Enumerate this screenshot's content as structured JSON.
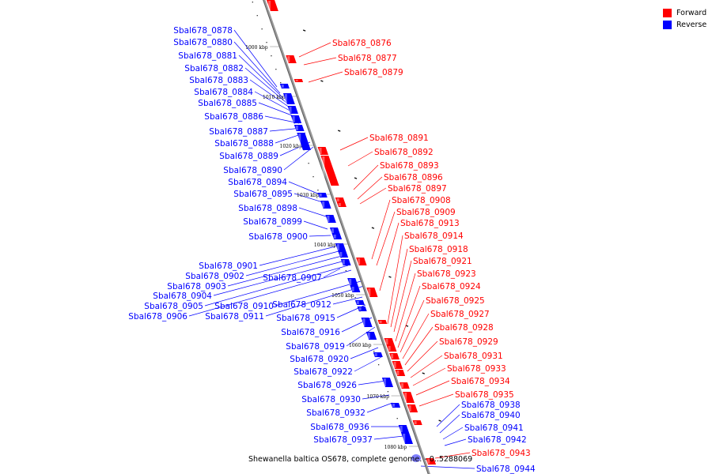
{
  "legend": {
    "forward": {
      "label": "Forward",
      "color": "#ff0000"
    },
    "reverse": {
      "label": "Reverse",
      "color": "#0000ff"
    }
  },
  "caption": "Shewanella baltica OS678, complete genome. - 0..5288069",
  "ticks": [
    "1000 kbp",
    "1010 kbp",
    "1020 kbp",
    "1030 kbp",
    "1040 kbp",
    "1050 kbp",
    "1060 kbp",
    "1070 kbp",
    "1080 kbp"
  ],
  "genes": {
    "forward": [
      "Sbal678_0876",
      "Sbal678_0877",
      "Sbal678_0879",
      "Sbal678_0891",
      "Sbal678_0892",
      "Sbal678_0893",
      "Sbal678_0896",
      "Sbal678_0897",
      "Sbal678_0908",
      "Sbal678_0909",
      "Sbal678_0913",
      "Sbal678_0914",
      "Sbal678_0918",
      "Sbal678_0921",
      "Sbal678_0923",
      "Sbal678_0924",
      "Sbal678_0925",
      "Sbal678_0927",
      "Sbal678_0928",
      "Sbal678_0929",
      "Sbal678_0931",
      "Sbal678_0933",
      "Sbal678_0934",
      "Sbal678_0935",
      "Sbal678_0943"
    ],
    "reverse": [
      "Sbal678_0878",
      "Sbal678_0880",
      "Sbal678_0881",
      "Sbal678_0882",
      "Sbal678_0883",
      "Sbal678_0884",
      "Sbal678_0885",
      "Sbal678_0886",
      "Sbal678_0887",
      "Sbal678_0888",
      "Sbal678_0889",
      "Sbal678_0890",
      "Sbal678_0894",
      "Sbal678_0895",
      "Sbal678_0898",
      "Sbal678_0899",
      "Sbal678_0900",
      "Sbal678_0901",
      "Sbal678_0902",
      "Sbal678_0903",
      "Sbal678_0904",
      "Sbal678_0905",
      "Sbal678_0906",
      "Sbal678_0907",
      "Sbal678_0910",
      "Sbal678_0911",
      "Sbal678_0912",
      "Sbal678_0915",
      "Sbal678_0916",
      "Sbal678_0919",
      "Sbal678_0920",
      "Sbal678_0922",
      "Sbal678_0926",
      "Sbal678_0930",
      "Sbal678_0932",
      "Sbal678_0936",
      "Sbal678_0937",
      "Sbal678_0938",
      "Sbal678_0940",
      "Sbal678_0941",
      "Sbal678_0942",
      "Sbal678_0944"
    ]
  }
}
